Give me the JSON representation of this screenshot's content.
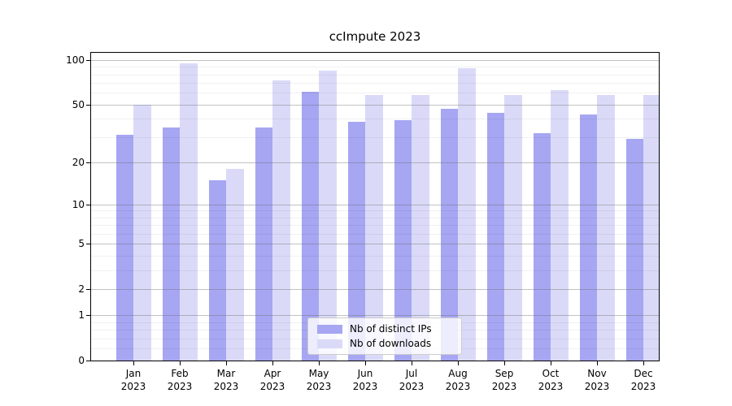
{
  "figure": {
    "title": "ccImpute 2023"
  },
  "legend": {
    "items": [
      {
        "label": "Nb of distinct IPs",
        "color": "#a6a6f3"
      },
      {
        "label": "Nb of downloads",
        "color": "#dadaf8"
      }
    ]
  },
  "chart_data": {
    "type": "bar",
    "title": "ccImpute 2023",
    "categories": [
      "Jan 2023",
      "Feb 2023",
      "Mar 2023",
      "Apr 2023",
      "May 2023",
      "Jun 2023",
      "Jul 2023",
      "Aug 2023",
      "Sep 2023",
      "Oct 2023",
      "Nov 2023",
      "Dec 2023"
    ],
    "x_axis": {
      "months": [
        "Jan",
        "Feb",
        "Mar",
        "Apr",
        "May",
        "Jun",
        "Jul",
        "Aug",
        "Sep",
        "Oct",
        "Nov",
        "Dec"
      ],
      "year": "2023"
    },
    "series": [
      {
        "name": "Nb of distinct IPs",
        "color": "#a6a6f3",
        "values": [
          31,
          35,
          15,
          35,
          61,
          38,
          39,
          47,
          44,
          32,
          43,
          29
        ]
      },
      {
        "name": "Nb of downloads",
        "color": "#dadaf8",
        "values": [
          50,
          95,
          18,
          73,
          85,
          58,
          58,
          88,
          58,
          63,
          58,
          58
        ]
      }
    ],
    "y_axis": {
      "scale": "log1p",
      "major_ticks": [
        0,
        1,
        2,
        5,
        10,
        20,
        50,
        100
      ],
      "minor_ticks": [
        0.2,
        0.4,
        0.6,
        0.8,
        3,
        4,
        6,
        7,
        8,
        9,
        30,
        40,
        60,
        70,
        80,
        90
      ],
      "range": [
        0,
        112
      ]
    },
    "grid": "horizontal",
    "legend_position": "lower center inside"
  }
}
